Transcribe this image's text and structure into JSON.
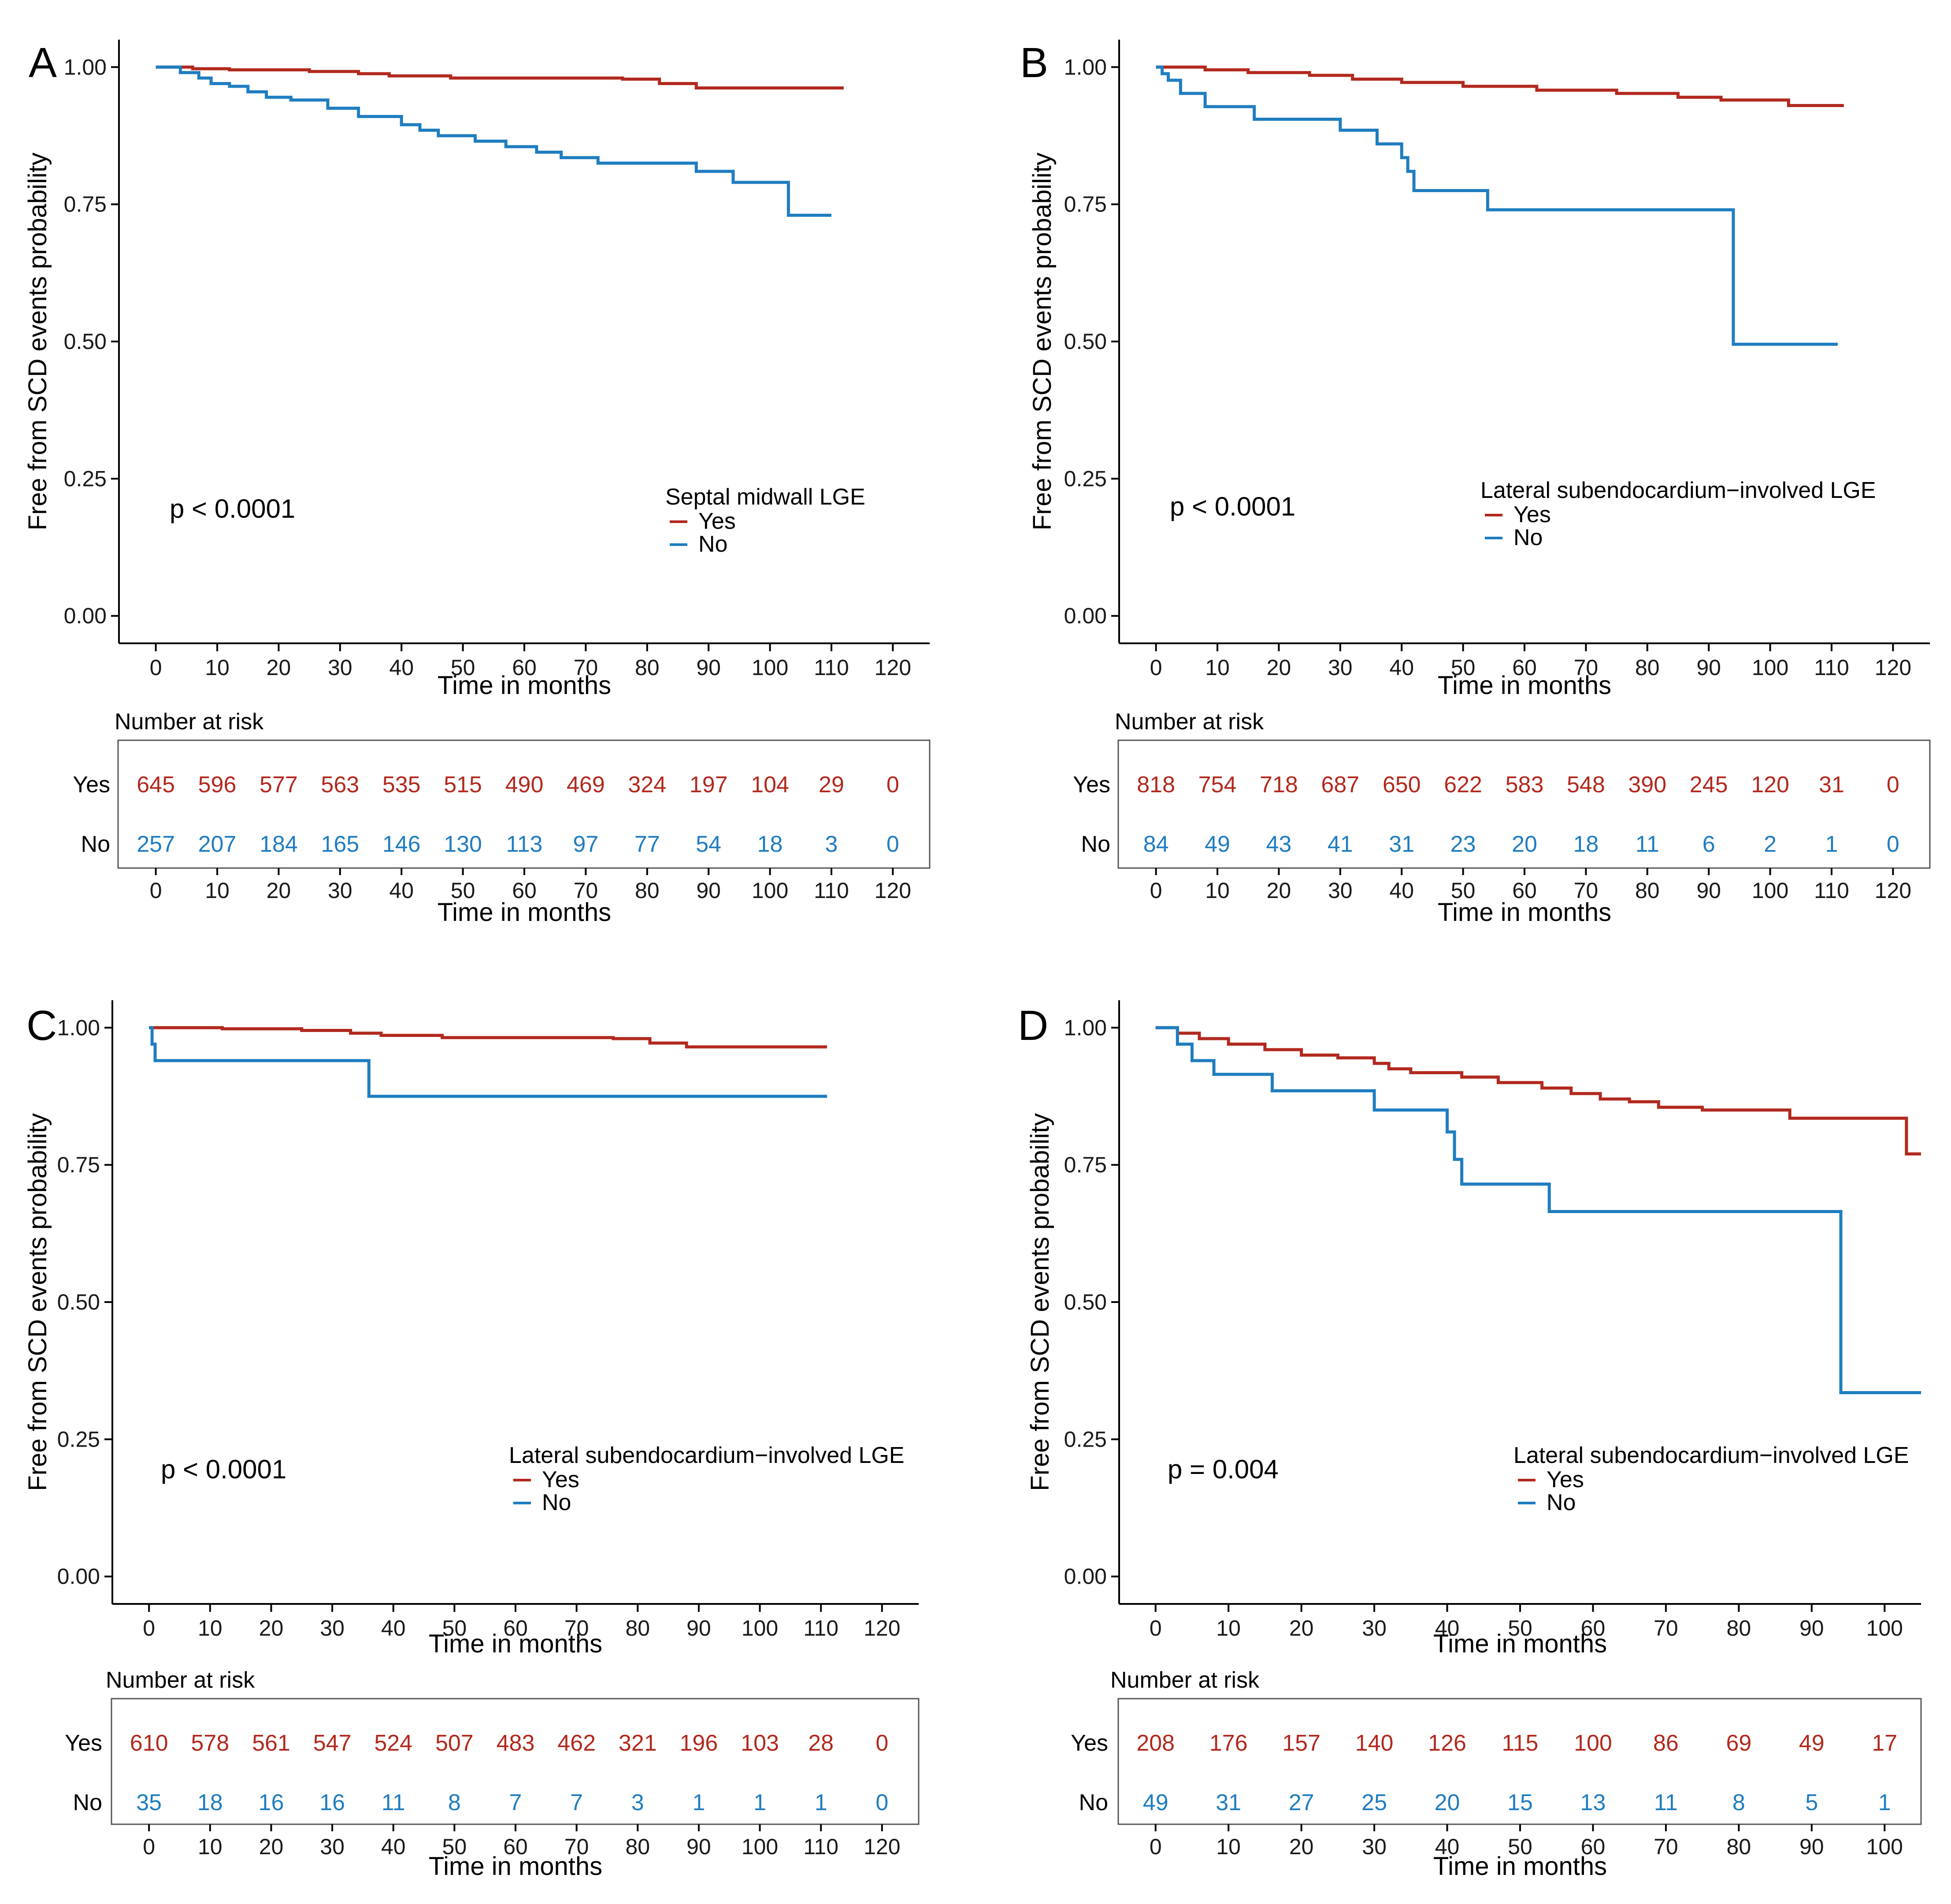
{
  "colors": {
    "yes": "#b2291e",
    "no": "#1f7dc0",
    "axis": "#000000"
  },
  "chart_data": [
    {
      "type": "line",
      "panel_label": "A",
      "ylabel": "Free from SCD events probability",
      "xlabel": "Time in months",
      "xlim": [
        -6,
        126
      ],
      "ylim": [
        -0.05,
        1.05
      ],
      "xticks": [
        "0",
        "10",
        "20",
        "30",
        "40",
        "50",
        "60",
        "70",
        "80",
        "90",
        "100",
        "110",
        "120"
      ],
      "yticks": [
        "0.00",
        "0.25",
        "0.50",
        "0.75",
        "1.00"
      ],
      "pvalue": "p < 0.0001",
      "legend_title": "Septal midwall LGE",
      "legend_labels": [
        "Yes",
        "No"
      ],
      "series": [
        {
          "name": "Yes",
          "x": [
            0,
            6,
            12,
            25,
            33,
            38,
            48,
            76,
            82,
            88,
            112
          ],
          "y": [
            1.0,
            0.997,
            0.995,
            0.992,
            0.988,
            0.984,
            0.98,
            0.978,
            0.97,
            0.962,
            0.962
          ]
        },
        {
          "name": "No",
          "x": [
            0,
            4,
            7,
            9,
            12,
            15,
            18,
            22,
            28,
            33,
            40,
            43,
            46,
            52,
            57,
            62,
            66,
            72,
            80,
            88,
            94,
            103,
            110
          ],
          "y": [
            1.0,
            0.99,
            0.98,
            0.97,
            0.965,
            0.955,
            0.945,
            0.94,
            0.925,
            0.91,
            0.895,
            0.885,
            0.875,
            0.865,
            0.855,
            0.845,
            0.835,
            0.825,
            0.825,
            0.81,
            0.79,
            0.73,
            0.73
          ]
        }
      ],
      "risk_table": {
        "title": "Number at risk",
        "groups": [
          "Yes",
          "No"
        ],
        "times": [
          "0",
          "10",
          "20",
          "30",
          "40",
          "50",
          "60",
          "70",
          "80",
          "90",
          "100",
          "110",
          "120"
        ],
        "yes": [
          "645",
          "596",
          "577",
          "563",
          "535",
          "515",
          "490",
          "469",
          "324",
          "197",
          "104",
          "29",
          "0"
        ],
        "no": [
          "257",
          "207",
          "184",
          "165",
          "146",
          "130",
          "113",
          "97",
          "77",
          "54",
          "18",
          "3",
          "0"
        ]
      }
    },
    {
      "type": "line",
      "panel_label": "B",
      "ylabel": "Free from SCD events probability",
      "xlabel": "Time in months",
      "xlim": [
        -6,
        126
      ],
      "ylim": [
        -0.05,
        1.05
      ],
      "xticks": [
        "0",
        "10",
        "20",
        "30",
        "40",
        "50",
        "60",
        "70",
        "80",
        "90",
        "100",
        "110",
        "120"
      ],
      "yticks": [
        "0.00",
        "0.25",
        "0.50",
        "0.75",
        "1.00"
      ],
      "pvalue": "p < 0.0001",
      "legend_title": "Lateral subendocardium−involved LGE",
      "legend_labels": [
        "Yes",
        "No"
      ],
      "series": [
        {
          "name": "Yes",
          "x": [
            0,
            8,
            15,
            25,
            32,
            40,
            50,
            62,
            75,
            85,
            92,
            103,
            112
          ],
          "y": [
            1.0,
            0.995,
            0.99,
            0.985,
            0.978,
            0.972,
            0.965,
            0.958,
            0.952,
            0.945,
            0.94,
            0.93,
            0.93
          ]
        },
        {
          "name": "No",
          "x": [
            0,
            1,
            2,
            4,
            8,
            16,
            30,
            36,
            40,
            41,
            42,
            54,
            94,
            111
          ],
          "y": [
            1.0,
            0.988,
            0.976,
            0.952,
            0.928,
            0.905,
            0.885,
            0.86,
            0.835,
            0.81,
            0.775,
            0.74,
            0.495,
            0.495
          ]
        }
      ],
      "risk_table": {
        "title": "Number at risk",
        "groups": [
          "Yes",
          "No"
        ],
        "times": [
          "0",
          "10",
          "20",
          "30",
          "40",
          "50",
          "60",
          "70",
          "80",
          "90",
          "100",
          "110",
          "120"
        ],
        "yes": [
          "818",
          "754",
          "718",
          "687",
          "650",
          "622",
          "583",
          "548",
          "390",
          "245",
          "120",
          "31",
          "0"
        ],
        "no": [
          "84",
          "49",
          "43",
          "41",
          "31",
          "23",
          "20",
          "18",
          "11",
          "6",
          "2",
          "1",
          "0"
        ]
      }
    },
    {
      "type": "line",
      "panel_label": "C",
      "ylabel": "Free from SCD events probability",
      "xlabel": "Time in months",
      "xlim": [
        -6,
        126
      ],
      "ylim": [
        -0.05,
        1.05
      ],
      "xticks": [
        "0",
        "10",
        "20",
        "30",
        "40",
        "50",
        "60",
        "70",
        "80",
        "90",
        "100",
        "110",
        "120"
      ],
      "yticks": [
        "0.00",
        "0.25",
        "0.50",
        "0.75",
        "1.00"
      ],
      "pvalue": "p < 0.0001",
      "legend_title": "Lateral subendocardium−involved LGE",
      "legend_labels": [
        "Yes",
        "No"
      ],
      "series": [
        {
          "name": "Yes",
          "x": [
            0,
            12,
            25,
            33,
            38,
            48,
            76,
            82,
            88,
            111
          ],
          "y": [
            1.0,
            0.998,
            0.995,
            0.99,
            0.986,
            0.982,
            0.98,
            0.972,
            0.965,
            0.965
          ]
        },
        {
          "name": "No",
          "x": [
            0,
            0.5,
            1,
            36,
            111
          ],
          "y": [
            1.0,
            0.97,
            0.94,
            0.875,
            0.875
          ]
        }
      ],
      "risk_table": {
        "title": "Number at risk",
        "groups": [
          "Yes",
          "No"
        ],
        "times": [
          "0",
          "10",
          "20",
          "30",
          "40",
          "50",
          "60",
          "70",
          "80",
          "90",
          "100",
          "110",
          "120"
        ],
        "yes": [
          "610",
          "578",
          "561",
          "547",
          "524",
          "507",
          "483",
          "462",
          "321",
          "196",
          "103",
          "28",
          "0"
        ],
        "no": [
          "35",
          "18",
          "16",
          "16",
          "11",
          "8",
          "7",
          "7",
          "3",
          "1",
          "1",
          "1",
          "0"
        ]
      }
    },
    {
      "type": "line",
      "panel_label": "D",
      "ylabel": "Free from SCD events probability",
      "xlabel": "Time in months",
      "xlim": [
        -5,
        105
      ],
      "ylim": [
        -0.05,
        1.05
      ],
      "xticks": [
        "0",
        "10",
        "20",
        "30",
        "40",
        "50",
        "60",
        "70",
        "80",
        "90",
        "100"
      ],
      "yticks": [
        "0.00",
        "0.25",
        "0.50",
        "0.75",
        "1.00"
      ],
      "pvalue": "p = 0.004",
      "legend_title": "Lateral subendocardium−involved LGE",
      "legend_labels": [
        "Yes",
        "No"
      ],
      "series": [
        {
          "name": "Yes",
          "x": [
            0,
            3,
            6,
            10,
            15,
            20,
            25,
            30,
            32,
            35,
            42,
            47,
            53,
            57,
            61,
            65,
            69,
            75,
            87,
            103,
            105
          ],
          "y": [
            1.0,
            0.99,
            0.98,
            0.97,
            0.96,
            0.95,
            0.945,
            0.935,
            0.925,
            0.918,
            0.91,
            0.9,
            0.89,
            0.88,
            0.87,
            0.865,
            0.855,
            0.85,
            0.835,
            0.77,
            0.77
          ]
        },
        {
          "name": "No",
          "x": [
            0,
            3,
            5,
            8,
            16,
            30,
            40,
            41,
            42,
            54,
            94,
            105
          ],
          "y": [
            1.0,
            0.97,
            0.94,
            0.915,
            0.885,
            0.85,
            0.81,
            0.76,
            0.715,
            0.665,
            0.335,
            0.335
          ]
        }
      ],
      "risk_table": {
        "title": "Number at risk",
        "groups": [
          "Yes",
          "No"
        ],
        "times": [
          "0",
          "10",
          "20",
          "30",
          "40",
          "50",
          "60",
          "70",
          "80",
          "90",
          "100"
        ],
        "yes": [
          "208",
          "176",
          "157",
          "140",
          "126",
          "115",
          "100",
          "86",
          "69",
          "49",
          "17"
        ],
        "no": [
          "49",
          "31",
          "27",
          "25",
          "20",
          "15",
          "13",
          "11",
          "8",
          "5",
          "1"
        ]
      }
    }
  ]
}
